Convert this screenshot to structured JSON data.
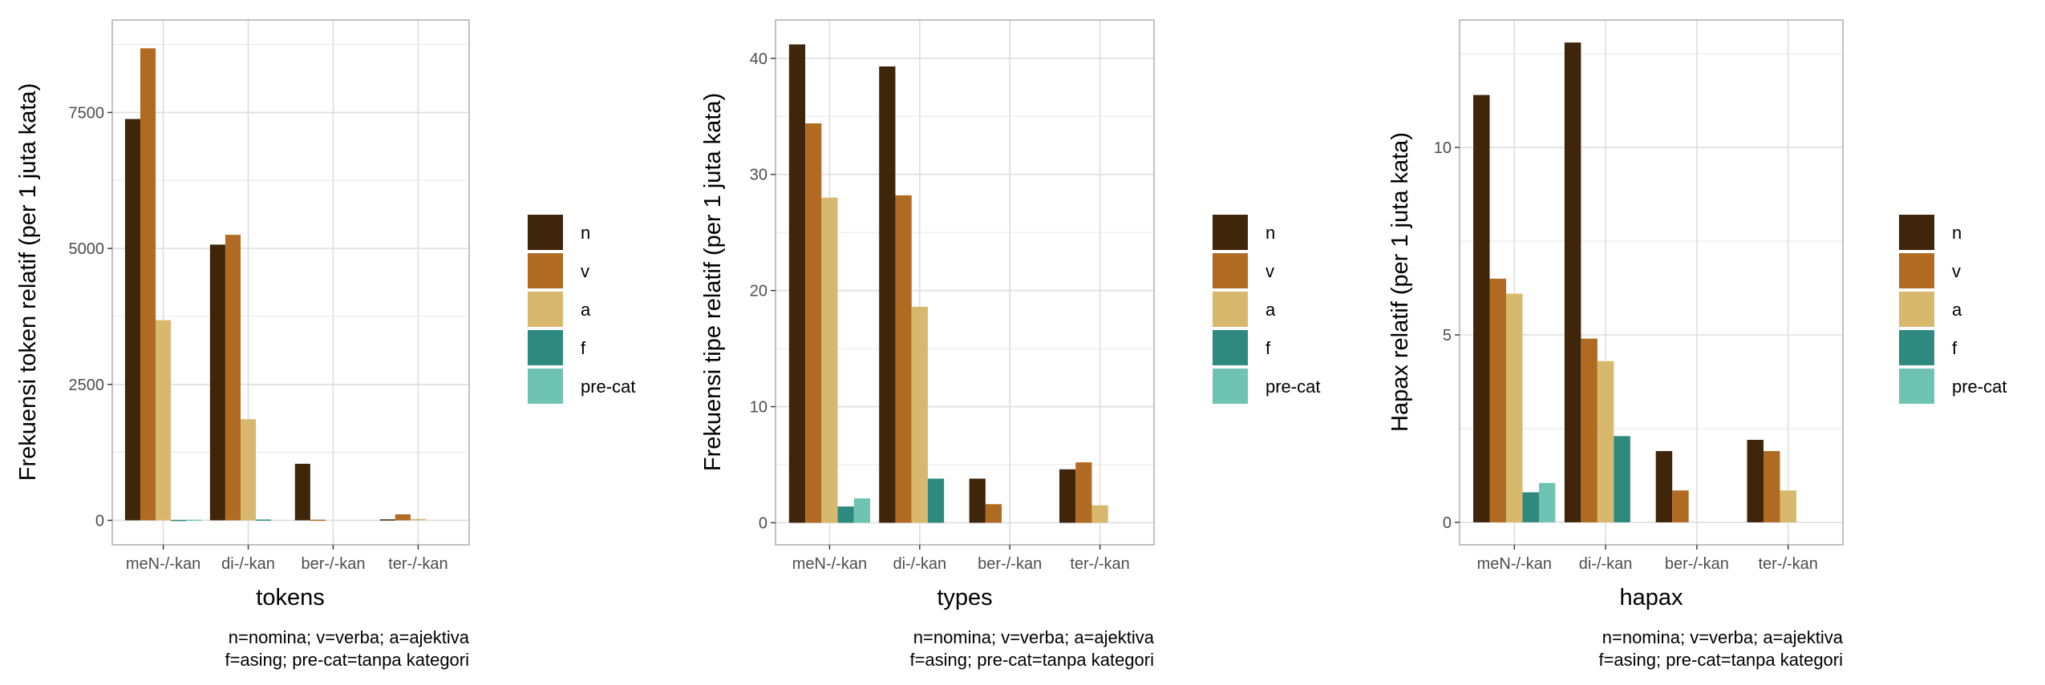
{
  "categories": [
    "meN-/-kan",
    "di-/-kan",
    "ber-/-kan",
    "ter-/-kan"
  ],
  "legend": [
    {
      "key": "n",
      "label": "n",
      "color": "#3f2509"
    },
    {
      "key": "v",
      "label": "v",
      "color": "#b06a22"
    },
    {
      "key": "a",
      "label": "a",
      "color": "#d8b86c"
    },
    {
      "key": "f",
      "label": "f",
      "color": "#2e8a7e"
    },
    {
      "key": "pre-cat",
      "label": "pre-cat",
      "color": "#6fc3b2"
    }
  ],
  "caption": [
    "n=nomina; v=verba; a=ajektiva",
    "f=asing; pre-cat=tanpa kategori"
  ],
  "chart_data": [
    {
      "type": "bar",
      "categories": [
        "meN-/-kan",
        "di-/-kan",
        "ber-/-kan",
        "ter-/-kan"
      ],
      "series": [
        {
          "name": "n",
          "values": [
            7380,
            5070,
            1040,
            18
          ]
        },
        {
          "name": "v",
          "values": [
            8680,
            5250,
            12,
            110
          ]
        },
        {
          "name": "a",
          "values": [
            3680,
            1860,
            0,
            25
          ]
        },
        {
          "name": "f",
          "values": [
            8,
            15,
            0,
            0
          ]
        },
        {
          "name": "pre-cat",
          "values": [
            12,
            0,
            0,
            0
          ]
        }
      ],
      "xlabel": "tokens",
      "ylabel": "Frekuensi token relatif (per 1 juta kata)",
      "ylim": [
        -450,
        9200
      ],
      "yticks": [
        0,
        2500,
        5000,
        7500
      ],
      "ytick_labels": [
        "0",
        "2500",
        "5000",
        "7500"
      ],
      "grid": true
    },
    {
      "type": "bar",
      "categories": [
        "meN-/-kan",
        "di-/-kan",
        "ber-/-kan",
        "ter-/-kan"
      ],
      "series": [
        {
          "name": "n",
          "values": [
            41.2,
            39.3,
            3.8,
            4.6
          ]
        },
        {
          "name": "v",
          "values": [
            34.4,
            28.2,
            1.6,
            5.2
          ]
        },
        {
          "name": "a",
          "values": [
            28.0,
            18.6,
            0,
            1.5
          ]
        },
        {
          "name": "f",
          "values": [
            1.4,
            3.8,
            0,
            0
          ]
        },
        {
          "name": "pre-cat",
          "values": [
            2.1,
            0,
            0,
            0
          ]
        }
      ],
      "xlabel": "types",
      "ylabel": "Frekuensi tipe relatif (per 1 juta kata)",
      "ylim": [
        -1.9,
        43.3
      ],
      "yticks": [
        0,
        10,
        20,
        30,
        40
      ],
      "ytick_labels": [
        "0",
        "10",
        "20",
        "30",
        "40"
      ],
      "grid": true
    },
    {
      "type": "bar",
      "categories": [
        "meN-/-kan",
        "di-/-kan",
        "ber-/-kan",
        "ter-/-kan"
      ],
      "series": [
        {
          "name": "n",
          "values": [
            11.4,
            12.8,
            1.9,
            2.2
          ]
        },
        {
          "name": "v",
          "values": [
            6.5,
            4.9,
            0.85,
            1.9
          ]
        },
        {
          "name": "a",
          "values": [
            6.1,
            4.3,
            0,
            0.85
          ]
        },
        {
          "name": "f",
          "values": [
            0.8,
            2.3,
            0,
            0
          ]
        },
        {
          "name": "pre-cat",
          "values": [
            1.05,
            0,
            0,
            0
          ]
        }
      ],
      "xlabel": "hapax",
      "ylabel": "Hapax relatif (per 1 juta kata)",
      "ylim": [
        -0.6,
        13.4
      ],
      "yticks": [
        0,
        5,
        10
      ],
      "ytick_labels": [
        "0",
        "5",
        "10"
      ],
      "grid": true
    }
  ]
}
